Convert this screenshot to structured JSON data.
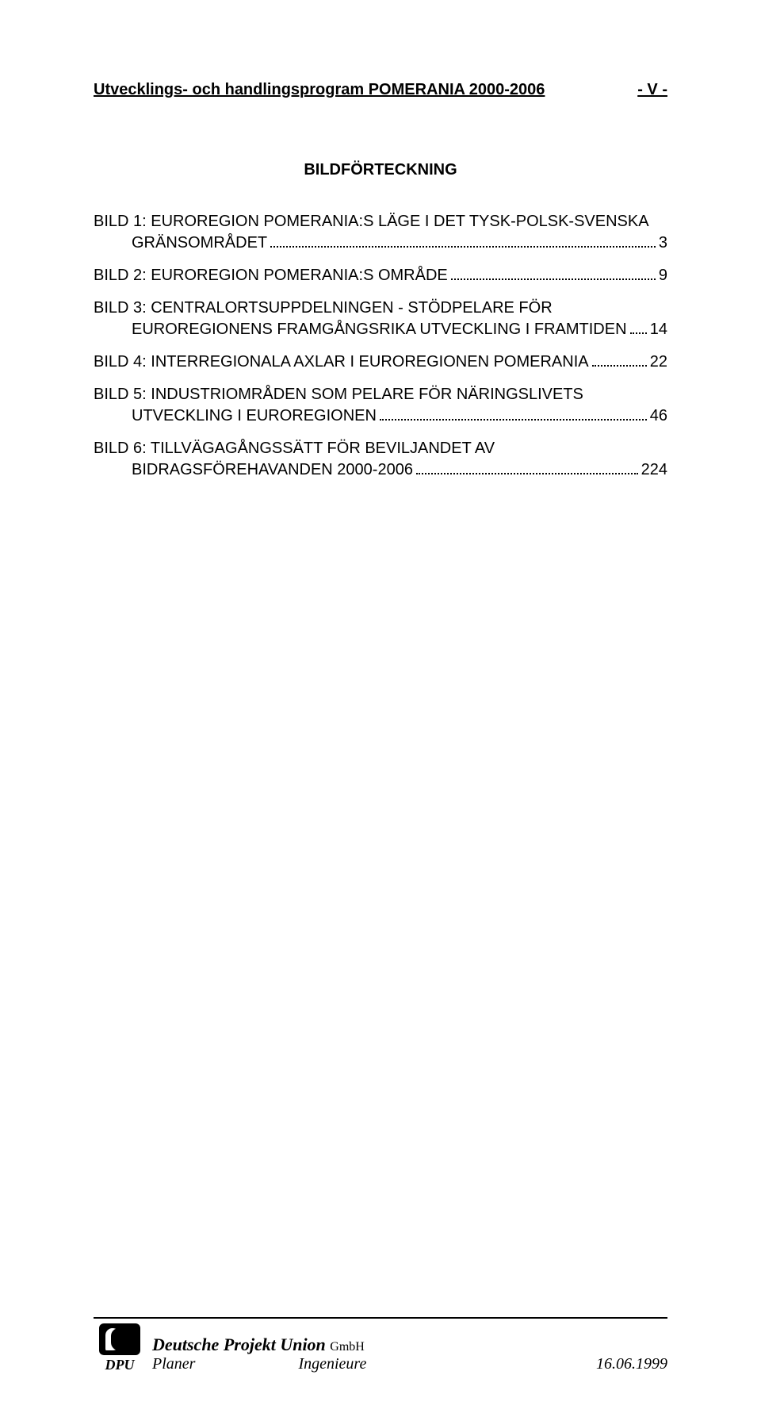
{
  "header": {
    "title": "Utvecklings- och handlingsprogram POMERANIA 2000-2006",
    "page_marker": "- V -"
  },
  "section_title": "BILDFÖRTECKNING",
  "toc": [
    {
      "lines": [
        "BILD 1: EUROREGION POMERANIA:S LÄGE I DET TYSK-POLSK-SVENSKA",
        "GRÄNSOMRÅDET"
      ],
      "page": "3"
    },
    {
      "lines": [
        "BILD 2: EUROREGION POMERANIA:S OMRÅDE"
      ],
      "page": "9"
    },
    {
      "lines": [
        "BILD 3: CENTRALORTSUPPDELNINGEN - STÖDPELARE FÖR",
        "EUROREGIONENS FRAMGÅNGSRIKA UTVECKLING I FRAMTIDEN"
      ],
      "page": "14"
    },
    {
      "lines": [
        "BILD 4:  INTERREGIONALA AXLAR I EUROREGIONEN POMERANIA"
      ],
      "page": "22"
    },
    {
      "lines": [
        "BILD 5: INDUSTRIOMRÅDEN SOM PELARE FÖR NÄRINGSLIVETS",
        "UTVECKLING I EUROREGIONEN"
      ],
      "page": "46"
    },
    {
      "lines": [
        "BILD 6: TILLVÄGAGÅNGSSÄTT  FÖR BEVILJANDET AV",
        "BIDRAGSFÖREHAVANDEN  2000-2006"
      ],
      "page": "224"
    }
  ],
  "footer": {
    "logo_label": "DPU",
    "company_bold": "Deutsche Projekt Union",
    "company_suffix": "GmbH",
    "role1": "Planer",
    "role2": "Ingenieure",
    "date": "16.06.1999"
  },
  "colors": {
    "text": "#000000",
    "background": "#ffffff"
  }
}
